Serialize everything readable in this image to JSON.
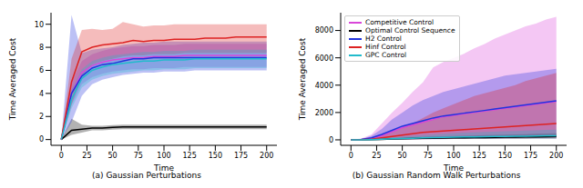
{
  "chart_data": [
    {
      "type": "line",
      "subtitle": "(a) Gaussian Perturbations",
      "x_label": "Time",
      "y_label": "Time Averaged Cost",
      "x": [
        0,
        10,
        20,
        30,
        40,
        50,
        60,
        70,
        80,
        90,
        100,
        110,
        120,
        130,
        140,
        150,
        160,
        170,
        180,
        190,
        200
      ],
      "xlim": [
        -10,
        210
      ],
      "xticks": [
        0,
        25,
        50,
        75,
        100,
        125,
        150,
        175,
        200
      ],
      "ylim": [
        -0.5,
        11
      ],
      "yticks": [
        0,
        2,
        4,
        6,
        8,
        10
      ],
      "series": [
        {
          "color": "#d946d9",
          "values": [
            0,
            4,
            5.8,
            6.4,
            6.7,
            6.9,
            7,
            7.1,
            7.1,
            7.2,
            7.2,
            7.2,
            7.3,
            7.3,
            7.3,
            7.3,
            7.3,
            7.3,
            7.3,
            7.3,
            7.3
          ],
          "lower": [
            0,
            3,
            4.8,
            5.4,
            5.7,
            5.9,
            6,
            6.1,
            6.1,
            6.2,
            6.2,
            6.2,
            6.3,
            6.3,
            6.3,
            6.3,
            6.3,
            6.3,
            6.3,
            6.3,
            6.3
          ],
          "upper": [
            0,
            5,
            6.8,
            7.4,
            7.7,
            7.9,
            8,
            8.1,
            8.1,
            8.2,
            8.2,
            8.2,
            8.3,
            8.3,
            8.3,
            8.3,
            8.3,
            8.3,
            8.3,
            8.3,
            8.3
          ]
        },
        {
          "color": "#000000",
          "values": [
            0,
            0.8,
            0.9,
            1,
            1,
            1.05,
            1.1,
            1.1,
            1.1,
            1.1,
            1.1,
            1.1,
            1.1,
            1.1,
            1.1,
            1.1,
            1.1,
            1.1,
            1.1,
            1.1,
            1.1
          ],
          "lower": [
            0,
            0.4,
            0.6,
            0.8,
            0.8,
            0.85,
            0.9,
            0.9,
            0.9,
            0.9,
            0.9,
            0.9,
            0.9,
            0.9,
            0.9,
            0.9,
            0.9,
            0.9,
            0.9,
            0.9,
            0.9
          ],
          "upper": [
            0,
            1.8,
            1.3,
            1.2,
            1.2,
            1.25,
            1.3,
            1.3,
            1.3,
            1.3,
            1.3,
            1.3,
            1.3,
            1.3,
            1.3,
            1.3,
            1.3,
            1.3,
            1.3,
            1.3,
            1.3
          ]
        },
        {
          "color": "#2233dd",
          "values": [
            0,
            4,
            5.5,
            6.2,
            6.5,
            6.6,
            6.8,
            7,
            7,
            7.1,
            7.1,
            7.1,
            7.1,
            7.1,
            7.1,
            7.1,
            7.1,
            7.1,
            7.1,
            7.1,
            7.1
          ],
          "lower": [
            0,
            1.5,
            3.8,
            4.8,
            5.2,
            5.4,
            5.6,
            5.7,
            5.8,
            5.8,
            5.9,
            5.9,
            5.9,
            6,
            6,
            6,
            6,
            6,
            6,
            6,
            6
          ],
          "upper": [
            0,
            10.8,
            7.5,
            7.8,
            7.9,
            8,
            8.2,
            8.3,
            8.4,
            8.4,
            8.5,
            8.5,
            8.5,
            8.5,
            8.5,
            8.5,
            8.5,
            8.5,
            8.5,
            8.5,
            8.5
          ]
        },
        {
          "color": "#dd2222",
          "values": [
            0,
            5,
            7.6,
            8,
            8.2,
            8.3,
            8.4,
            8.6,
            8.5,
            8.6,
            8.6,
            8.7,
            8.7,
            8.7,
            8.8,
            8.8,
            8.8,
            8.9,
            8.9,
            8.9,
            8.9
          ],
          "lower": [
            0,
            3,
            5.5,
            6.5,
            6.8,
            7,
            7.2,
            7.3,
            7.3,
            7.4,
            7.4,
            7.4,
            7.5,
            7.5,
            7.5,
            7.5,
            7.5,
            7.5,
            7.5,
            7.5,
            7.5
          ],
          "upper": [
            0,
            7,
            9.5,
            9.6,
            9.5,
            9.6,
            10.2,
            10,
            9.8,
            9.9,
            9.9,
            10,
            10,
            10,
            10,
            10,
            10,
            10,
            10,
            10,
            10
          ]
        },
        {
          "color": "#22bbcc",
          "values": [
            0,
            3.5,
            5.3,
            6,
            6.3,
            6.5,
            6.6,
            6.7,
            6.8,
            6.8,
            6.9,
            6.9,
            6.9,
            7,
            7,
            7,
            7,
            7,
            7,
            7,
            7
          ],
          "lower": [
            0,
            2.7,
            4.5,
            5.2,
            5.5,
            5.7,
            5.8,
            5.9,
            6,
            6,
            6.1,
            6.1,
            6.1,
            6.2,
            6.2,
            6.2,
            6.2,
            6.2,
            6.2,
            6.2,
            6.2
          ],
          "upper": [
            0,
            4.3,
            6.1,
            6.8,
            7.1,
            7.3,
            7.4,
            7.5,
            7.6,
            7.6,
            7.7,
            7.7,
            7.7,
            7.8,
            7.8,
            7.8,
            7.8,
            7.8,
            7.8,
            7.8,
            7.8
          ]
        }
      ]
    },
    {
      "type": "line",
      "subtitle": "(b) Gaussian Random Walk Perturbations",
      "x_label": "Time",
      "y_label": "Time Averaged Cost",
      "legend": "upper left",
      "x": [
        0,
        10,
        20,
        30,
        40,
        50,
        60,
        70,
        80,
        90,
        100,
        110,
        120,
        130,
        140,
        150,
        160,
        170,
        180,
        190,
        200
      ],
      "xlim": [
        -10,
        210
      ],
      "xticks": [
        0,
        25,
        50,
        75,
        100,
        125,
        150,
        175,
        200
      ],
      "ylim": [
        -400,
        9300
      ],
      "yticks": [
        0,
        2000,
        4000,
        6000,
        8000
      ],
      "series": [
        {
          "name": "Competitive Control",
          "color": "#d946d9",
          "values": [
            0,
            20,
            100,
            300,
            600,
            900,
            1100,
            1300,
            1500,
            1700,
            1800,
            1900,
            2000,
            2100,
            2200,
            2300,
            2400,
            2500,
            2600,
            2700,
            2800
          ],
          "lower": [
            0,
            0,
            0,
            0,
            0,
            10,
            20,
            30,
            40,
            50,
            60,
            70,
            80,
            80,
            90,
            90,
            100,
            100,
            100,
            100,
            100
          ],
          "upper": [
            0,
            100,
            400,
            1200,
            2000,
            2700,
            3500,
            4200,
            5300,
            5700,
            6000,
            6300,
            6700,
            7000,
            7400,
            7700,
            8000,
            8300,
            8500,
            8800,
            9000
          ]
        },
        {
          "name": "Optimal Control Sequence",
          "color": "#000000",
          "values": [
            0,
            5,
            20,
            40,
            60,
            80,
            100,
            110,
            120,
            130,
            140,
            150,
            160,
            170,
            180,
            190,
            200,
            210,
            220,
            230,
            240
          ],
          "lower": [
            0,
            2,
            10,
            20,
            30,
            40,
            50,
            55,
            60,
            65,
            70,
            75,
            80,
            85,
            90,
            95,
            100,
            105,
            110,
            115,
            120
          ],
          "upper": [
            0,
            10,
            40,
            80,
            120,
            160,
            200,
            220,
            240,
            260,
            280,
            300,
            320,
            340,
            360,
            380,
            400,
            420,
            440,
            460,
            480
          ]
        },
        {
          "name": "H2 Control",
          "color": "#2233dd",
          "values": [
            0,
            30,
            150,
            400,
            700,
            1000,
            1200,
            1400,
            1600,
            1750,
            1850,
            1950,
            2050,
            2150,
            2250,
            2350,
            2450,
            2550,
            2650,
            2750,
            2850
          ],
          "lower": [
            0,
            10,
            30,
            60,
            90,
            110,
            130,
            140,
            150,
            160,
            170,
            170,
            180,
            180,
            190,
            190,
            200,
            200,
            200,
            200,
            200
          ],
          "upper": [
            0,
            50,
            300,
            800,
            1500,
            2000,
            2500,
            2900,
            3200,
            3500,
            3700,
            3900,
            4100,
            4300,
            4500,
            4700,
            4800,
            4900,
            5000,
            5100,
            5200
          ]
        },
        {
          "name": "Hinf Control",
          "color": "#dd2222",
          "values": [
            0,
            10,
            50,
            150,
            250,
            350,
            450,
            550,
            600,
            650,
            700,
            750,
            800,
            850,
            900,
            950,
            1000,
            1050,
            1100,
            1150,
            1200
          ],
          "lower": [
            0,
            2,
            10,
            20,
            30,
            40,
            50,
            55,
            60,
            65,
            70,
            75,
            80,
            85,
            90,
            95,
            100,
            105,
            110,
            115,
            120
          ],
          "upper": [
            0,
            20,
            100,
            300,
            600,
            900,
            1200,
            1600,
            2000,
            2300,
            2600,
            2900,
            3200,
            3400,
            3600,
            3800,
            4000,
            4300,
            4500,
            4700,
            4900
          ]
        },
        {
          "name": "GPC Control",
          "color": "#22bbcc",
          "values": [
            0,
            5,
            20,
            50,
            80,
            100,
            120,
            140,
            160,
            180,
            200,
            210,
            220,
            230,
            240,
            250,
            260,
            270,
            280,
            290,
            300
          ],
          "lower": [
            0,
            2,
            6,
            15,
            24,
            30,
            36,
            42,
            48,
            54,
            60,
            63,
            66,
            69,
            72,
            75,
            78,
            81,
            84,
            87,
            90
          ],
          "upper": [
            0,
            12,
            50,
            125,
            200,
            250,
            300,
            350,
            400,
            450,
            500,
            525,
            550,
            575,
            600,
            625,
            650,
            675,
            700,
            725,
            750
          ]
        }
      ]
    }
  ]
}
